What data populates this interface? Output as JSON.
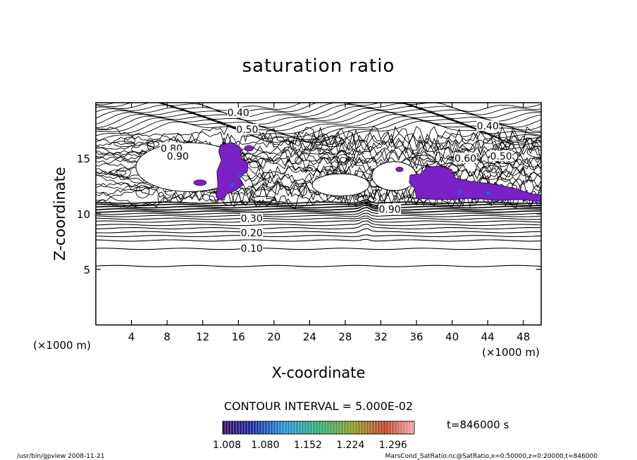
{
  "chart_data": {
    "type": "contour",
    "title": "saturation ratio",
    "xlabel": "X-coordinate",
    "ylabel": "Z-coordinate",
    "x_unit": "(×1000 m)",
    "y_unit": "(×1000 m)",
    "xlim": [
      0,
      50
    ],
    "ylim": [
      0,
      20
    ],
    "x_ticks": [
      4,
      8,
      12,
      16,
      20,
      24,
      28,
      32,
      36,
      40,
      44,
      48
    ],
    "y_ticks": [
      5,
      10,
      15
    ],
    "contour_interval_text": "CONTOUR INTERVAL = 5.000E-02",
    "time_text": "t=846000 s",
    "colorbar": {
      "min": 1.008,
      "max": 1.332,
      "tick_labels": [
        "1.008",
        "1.080",
        "1.152",
        "1.224",
        "1.296"
      ]
    },
    "contour_labels": [
      {
        "text": "0.40",
        "x": 16,
        "z": 19.1
      },
      {
        "text": "0.50",
        "x": 17,
        "z": 17.6
      },
      {
        "text": "0.40",
        "x": 44,
        "z": 17.9
      },
      {
        "text": "0.80",
        "x": 8.5,
        "z": 15.9
      },
      {
        "text": "0.90",
        "x": 9.2,
        "z": 15.2
      },
      {
        "text": "0.60",
        "x": 41.5,
        "z": 15.0
      },
      {
        "text": "0.50",
        "x": 45.5,
        "z": 15.2
      },
      {
        "text": "0.30",
        "x": 17.5,
        "z": 9.6
      },
      {
        "text": "0.20",
        "x": 17.5,
        "z": 8.3
      },
      {
        "text": "0.10",
        "x": 17.5,
        "z": 6.9
      },
      {
        "text": "0.90",
        "x": 33,
        "z": 10.4
      }
    ],
    "supersaturated_regions": [
      {
        "x": [
          13.5,
          18.5
        ],
        "z": [
          10.8,
          16.3
        ]
      },
      {
        "x": [
          35,
          50
        ],
        "z": [
          11.0,
          14.5
        ]
      }
    ],
    "legend": "none",
    "grid": false
  },
  "footer": {
    "left": "/usr/bin/gpview   2008-11-21",
    "right": "MarsCond_SatRatio.nc@SatRatio,x=0:50000,z=0:20000,t=846000"
  }
}
